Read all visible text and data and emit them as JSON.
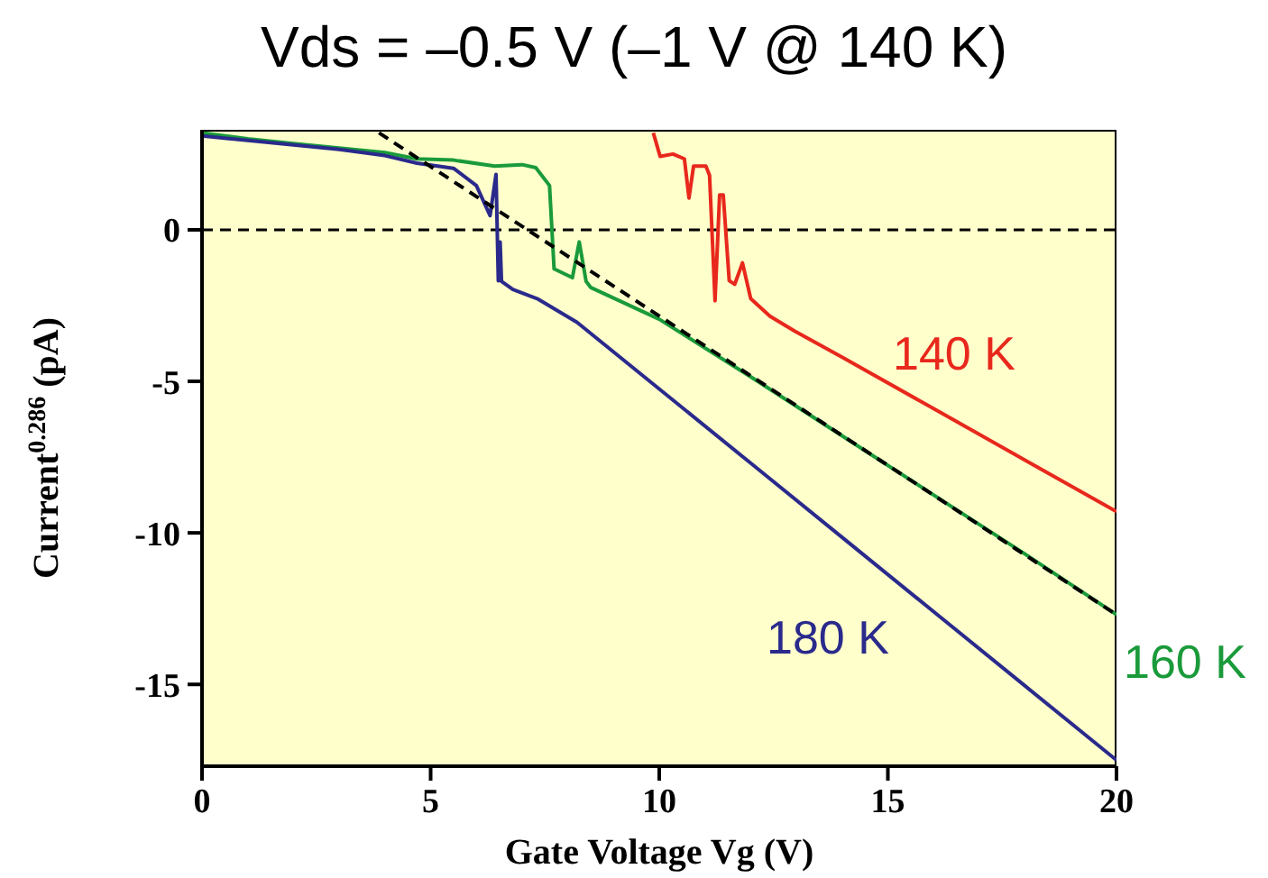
{
  "chart_data": {
    "type": "line",
    "title": "Vds = –0.5 V (–1 V @ 140 K)",
    "xlabel": "Gate Voltage Vg (V)",
    "ylabel": "Current$^{0.286}$ (pA)",
    "xlim": [
      0,
      20
    ],
    "ylim": [
      -17.7,
      3.3
    ],
    "xticks": [
      0,
      5,
      10,
      15,
      20
    ],
    "yticks": [
      -15,
      -10,
      -5,
      0
    ],
    "marker": "none",
    "ref_lines": [
      {
        "axis": "y",
        "value": 0,
        "line_style": "dashed",
        "color": "#000000"
      }
    ],
    "series": [
      {
        "name": "140 K",
        "color": "#e8281c",
        "x": [
          9.87,
          10.02,
          10.3,
          10.55,
          10.65,
          10.75,
          11.02,
          11.1,
          11.22,
          11.32,
          11.4,
          11.53,
          11.65,
          11.82,
          12.0,
          12.42,
          12.96,
          14,
          16,
          18,
          20
        ],
        "values": [
          3.2,
          2.42,
          2.5,
          2.34,
          1.05,
          2.1,
          2.1,
          1.8,
          -2.34,
          1.15,
          1.15,
          -1.68,
          -1.8,
          -1.09,
          -2.27,
          -2.85,
          -3.34,
          -4.2,
          -5.9,
          -7.6,
          -9.3
        ]
      },
      {
        "name": "160 K",
        "color": "#1a9a3a",
        "x": [
          0,
          1,
          2,
          3,
          4,
          4.7,
          5.5,
          6.4,
          7.0,
          7.3,
          7.6,
          7.7,
          8.1,
          8.25,
          8.4,
          8.5,
          10,
          12,
          14,
          16,
          18,
          20
        ],
        "values": [
          3.2,
          3.0,
          2.85,
          2.7,
          2.55,
          2.34,
          2.3,
          2.1,
          2.15,
          2.05,
          1.46,
          -1.29,
          -1.58,
          -0.4,
          -1.7,
          -1.9,
          -2.95,
          -4.85,
          -6.8,
          -8.75,
          -10.7,
          -12.7
        ]
      },
      {
        "name": "180 K",
        "color": "#2a2a8c",
        "x": [
          0,
          1,
          2,
          3,
          4,
          4.7,
          5.5,
          6.0,
          6.3,
          6.43,
          6.48,
          6.52,
          6.55,
          6.8,
          7.33,
          8.2,
          10,
          12,
          14,
          16,
          18,
          20
        ],
        "values": [
          3.1,
          2.95,
          2.8,
          2.65,
          2.45,
          2.2,
          2.03,
          1.46,
          0.47,
          1.83,
          -1.68,
          -0.4,
          -1.7,
          -1.97,
          -2.27,
          -3.05,
          -5.25,
          -7.7,
          -10.15,
          -12.6,
          -15.05,
          -17.5
        ]
      },
      {
        "type": "line",
        "color": "#000000",
        "line_style": "dashed",
        "x": [
          3.87,
          20
        ],
        "values": [
          3.2,
          -12.7
        ]
      }
    ]
  }
}
